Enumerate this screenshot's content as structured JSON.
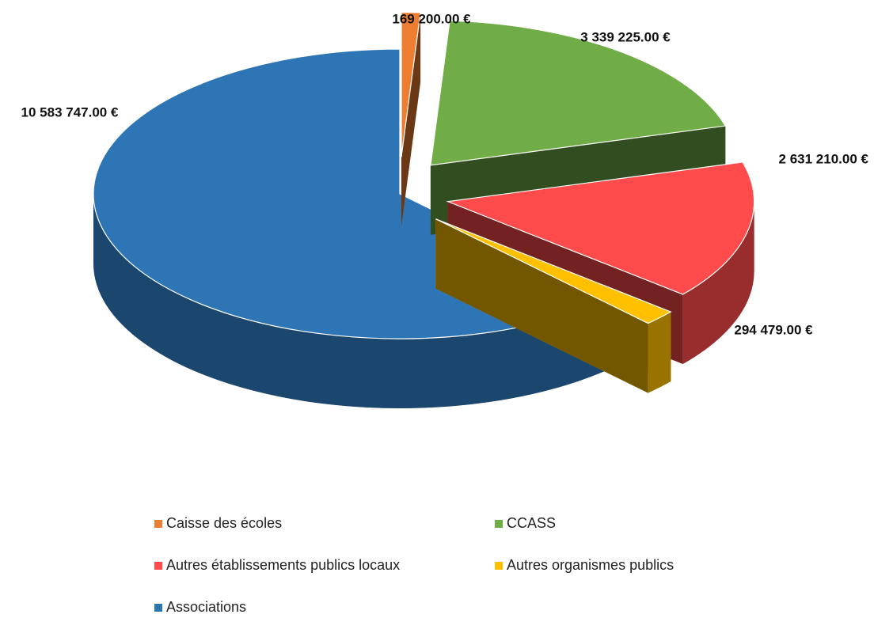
{
  "chart_data": {
    "type": "pie3d",
    "categories": [
      "Caisse des écoles",
      "CCASS",
      "Autres établissements publics locaux",
      "Autres organismes publics",
      "Associations"
    ],
    "values": [
      169200,
      3339225,
      2631210,
      294479,
      10583747
    ],
    "value_labels": [
      "169 200.00 €",
      "3 339 225.00 €",
      "2 631 210.00 €",
      "294 479.00 €",
      "10 583 747.00 €"
    ],
    "colors": [
      "#ed7d31",
      "#70ad47",
      "#ff4b4b",
      "#ffc000",
      "#2e75b6"
    ],
    "legend": "bottom"
  }
}
